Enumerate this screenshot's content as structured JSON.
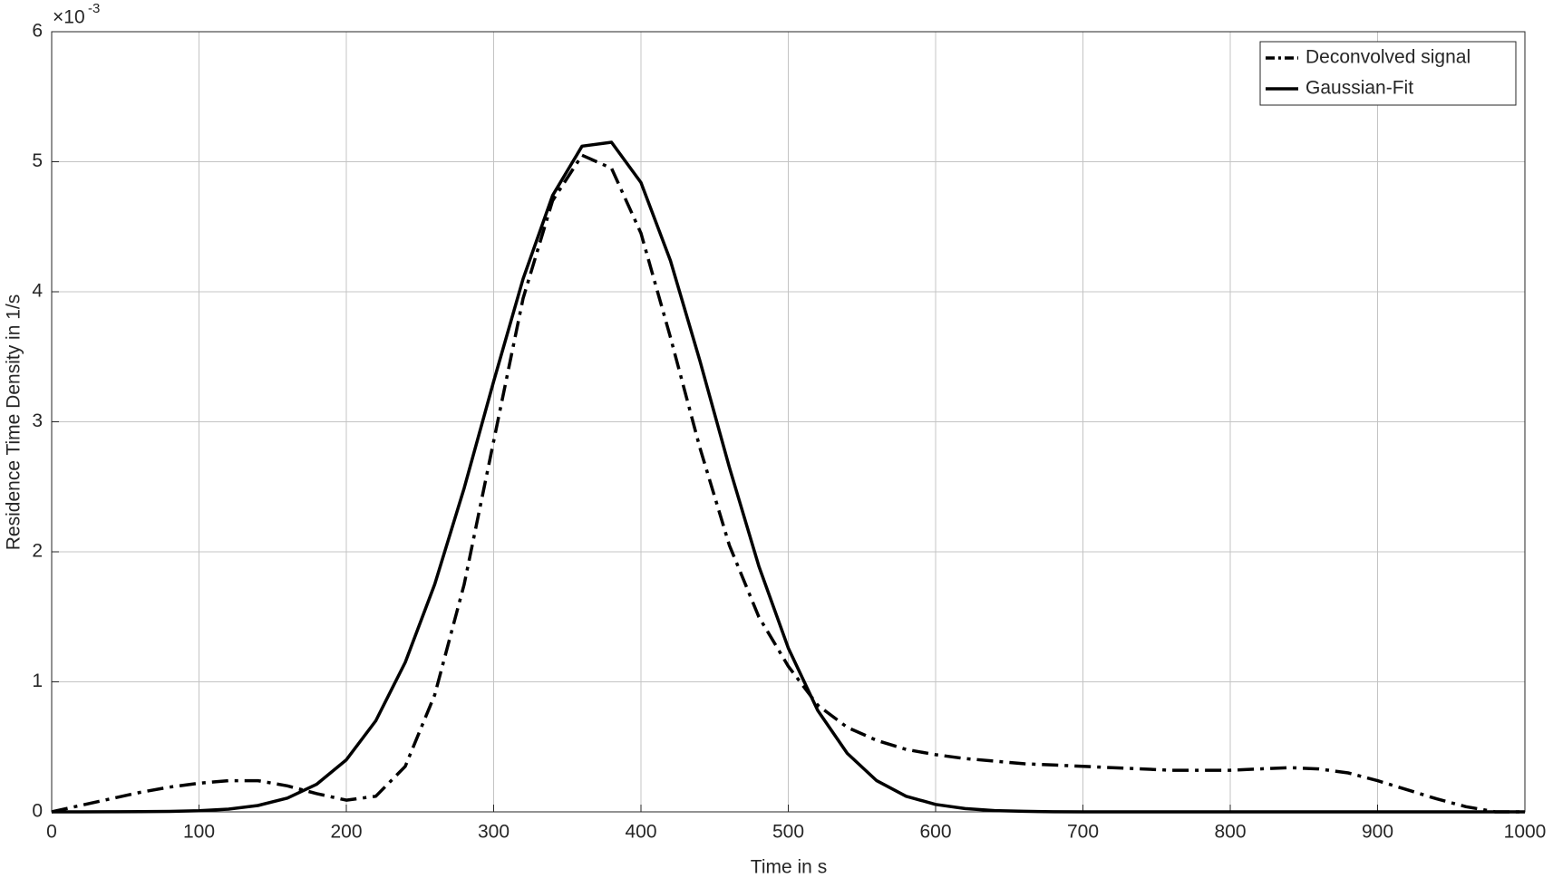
{
  "chart_data": {
    "type": "line",
    "xlabel": "Time in s",
    "ylabel": "Residence Time Density in 1/s",
    "y_exponent": {
      "base": "×10",
      "power": "-3"
    },
    "x": [
      0,
      20,
      40,
      60,
      80,
      100,
      120,
      140,
      160,
      180,
      200,
      220,
      240,
      260,
      280,
      300,
      320,
      340,
      360,
      380,
      400,
      420,
      440,
      460,
      480,
      500,
      520,
      540,
      560,
      580,
      600,
      620,
      640,
      660,
      680,
      700,
      720,
      740,
      760,
      780,
      800,
      820,
      840,
      860,
      880,
      900,
      920,
      940,
      960,
      980,
      1000
    ],
    "series": [
      {
        "name": "Deconvolved signal",
        "color": "#000000",
        "dash": "dashdot",
        "values": [
          0,
          0.05,
          0.1,
          0.15,
          0.19,
          0.22,
          0.24,
          0.24,
          0.2,
          0.14,
          0.09,
          0.12,
          0.35,
          0.9,
          1.75,
          2.85,
          3.95,
          4.7,
          5.05,
          4.95,
          4.45,
          3.65,
          2.8,
          2.05,
          1.5,
          1.12,
          0.82,
          0.65,
          0.55,
          0.48,
          0.44,
          0.41,
          0.39,
          0.37,
          0.36,
          0.35,
          0.34,
          0.33,
          0.32,
          0.32,
          0.32,
          0.33,
          0.34,
          0.33,
          0.3,
          0.24,
          0.17,
          0.1,
          0.04,
          0,
          0
        ]
      },
      {
        "name": "Gaussian-Fit",
        "color": "#000000",
        "dash": "solid",
        "values": [
          0,
          0.0001,
          0.0004,
          0.0011,
          0.0032,
          0.0086,
          0.021,
          0.049,
          0.106,
          0.213,
          0.4,
          0.7,
          1.15,
          1.75,
          2.49,
          3.31,
          4.1,
          4.74,
          5.12,
          5.15,
          4.84,
          4.24,
          3.47,
          2.65,
          1.89,
          1.26,
          0.78,
          0.45,
          0.24,
          0.12,
          0.057,
          0.025,
          0.01,
          0.004,
          0.001,
          0,
          0,
          0,
          0,
          0,
          0,
          0,
          0,
          0,
          0,
          0,
          0,
          0,
          0,
          0,
          0
        ]
      }
    ],
    "xlim": [
      0,
      1000
    ],
    "xticks": [
      0,
      100,
      200,
      300,
      400,
      500,
      600,
      700,
      800,
      900,
      1000
    ],
    "ylim": [
      0,
      6
    ],
    "yticks": [
      0,
      1,
      2,
      3,
      4,
      5,
      6
    ],
    "grid": true,
    "legend": "top-right"
  }
}
